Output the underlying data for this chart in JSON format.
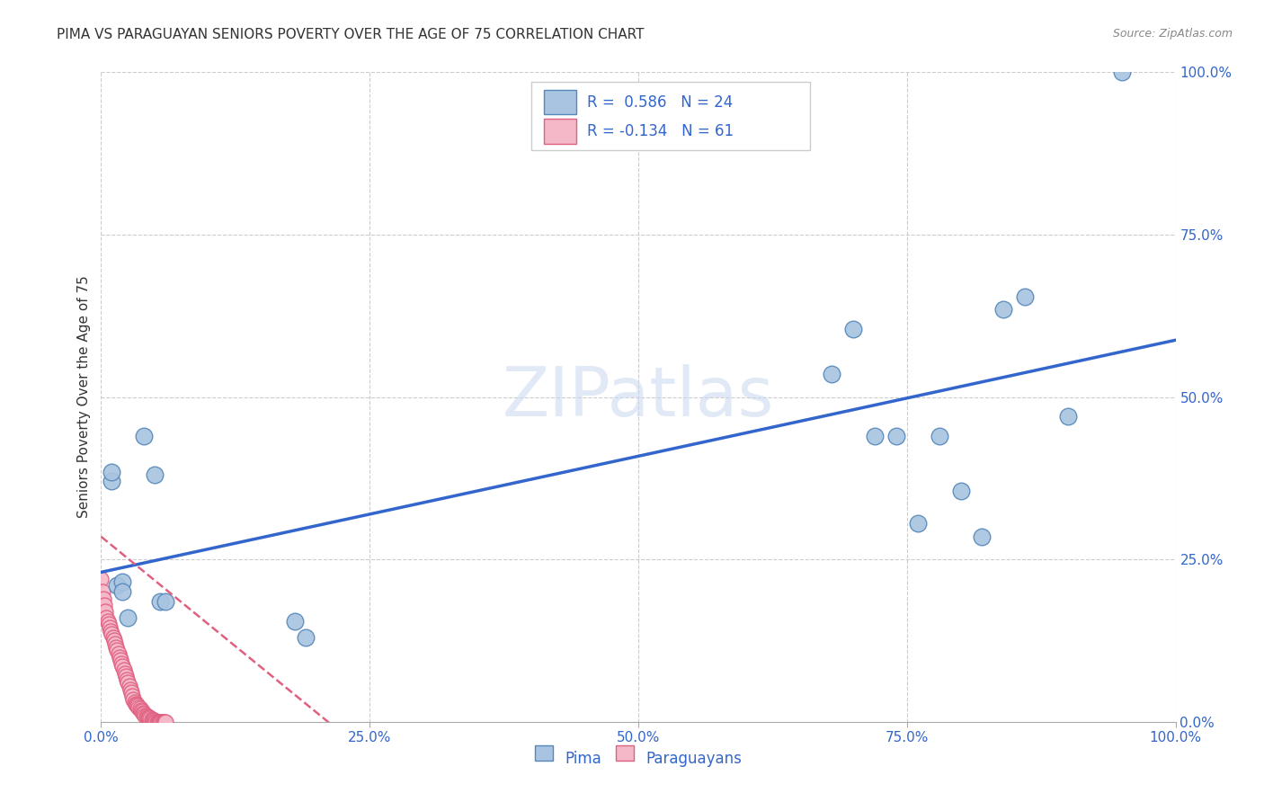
{
  "title": "PIMA VS PARAGUAYAN SENIORS POVERTY OVER THE AGE OF 75 CORRELATION CHART",
  "source": "Source: ZipAtlas.com",
  "ylabel": "Seniors Poverty Over the Age of 75",
  "xlim": [
    0.0,
    1.0
  ],
  "ylim": [
    0.0,
    1.0
  ],
  "xticks": [
    0.0,
    0.25,
    0.5,
    0.75,
    1.0
  ],
  "yticks": [
    0.0,
    0.25,
    0.5,
    0.75,
    1.0
  ],
  "xticklabels": [
    "0.0%",
    "25.0%",
    "50.0%",
    "75.0%",
    "100.0%"
  ],
  "yticklabels": [
    "0.0%",
    "25.0%",
    "50.0%",
    "75.0%",
    "100.0%"
  ],
  "pima_color": "#a8c4e0",
  "pima_edge_color": "#5588bb",
  "paraguayan_color": "#f4b8c8",
  "paraguayan_edge_color": "#e06080",
  "line_blue": "#3366cc",
  "line_pink": "#e06080",
  "pima_R": 0.586,
  "pima_N": 24,
  "paraguayan_R": -0.134,
  "paraguayan_N": 61,
  "pima_x": [
    0.01,
    0.01,
    0.015,
    0.02,
    0.02,
    0.025,
    0.04,
    0.05,
    0.055,
    0.06,
    0.18,
    0.19,
    0.68,
    0.7,
    0.72,
    0.74,
    0.76,
    0.78,
    0.8,
    0.82,
    0.84,
    0.86,
    0.9,
    0.95
  ],
  "pima_y": [
    0.37,
    0.385,
    0.21,
    0.215,
    0.2,
    0.16,
    0.44,
    0.38,
    0.185,
    0.185,
    0.155,
    0.13,
    0.535,
    0.605,
    0.44,
    0.44,
    0.305,
    0.44,
    0.355,
    0.285,
    0.635,
    0.655,
    0.47,
    1.0
  ],
  "paraguayan_x": [
    0.0,
    0.001,
    0.002,
    0.003,
    0.004,
    0.005,
    0.006,
    0.007,
    0.008,
    0.009,
    0.01,
    0.011,
    0.012,
    0.013,
    0.014,
    0.015,
    0.016,
    0.017,
    0.018,
    0.019,
    0.02,
    0.021,
    0.022,
    0.023,
    0.024,
    0.025,
    0.026,
    0.027,
    0.028,
    0.029,
    0.03,
    0.031,
    0.032,
    0.033,
    0.034,
    0.035,
    0.036,
    0.037,
    0.038,
    0.039,
    0.04,
    0.041,
    0.042,
    0.043,
    0.044,
    0.045,
    0.046,
    0.047,
    0.048,
    0.049,
    0.05,
    0.051,
    0.052,
    0.053,
    0.054,
    0.055,
    0.056,
    0.057,
    0.058,
    0.059,
    0.06
  ],
  "paraguayan_y": [
    0.22,
    0.2,
    0.19,
    0.18,
    0.17,
    0.16,
    0.155,
    0.15,
    0.145,
    0.14,
    0.135,
    0.13,
    0.125,
    0.12,
    0.115,
    0.11,
    0.105,
    0.1,
    0.095,
    0.09,
    0.085,
    0.08,
    0.075,
    0.07,
    0.065,
    0.06,
    0.055,
    0.05,
    0.045,
    0.04,
    0.035,
    0.03,
    0.028,
    0.026,
    0.024,
    0.022,
    0.02,
    0.018,
    0.016,
    0.014,
    0.012,
    0.01,
    0.009,
    0.008,
    0.007,
    0.006,
    0.005,
    0.004,
    0.003,
    0.002,
    0.001,
    0.0,
    0.0,
    0.0,
    0.0,
    0.0,
    0.0,
    0.0,
    0.0,
    0.0,
    0.0
  ],
  "grid_color": "#cccccc",
  "background_color": "#ffffff",
  "watermark": "ZIPatlas",
  "title_fontsize": 11,
  "axis_label_fontsize": 11,
  "tick_fontsize": 11,
  "legend_fontsize": 12
}
